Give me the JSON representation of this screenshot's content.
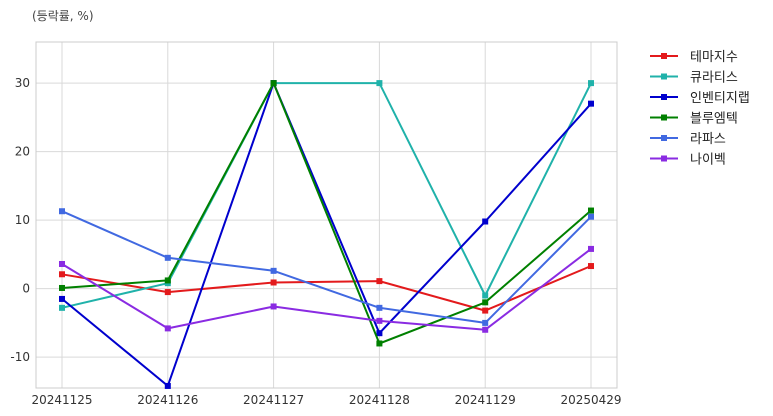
{
  "chart_data": {
    "type": "line",
    "unit_label": "(등락률, %)",
    "categories": [
      "20241125",
      "20241126",
      "20241127",
      "20241128",
      "20241129",
      "20250429"
    ],
    "ylim": [
      -14.5,
      36
    ],
    "yticks": [
      -10,
      0,
      10,
      20,
      30
    ],
    "grid": true,
    "legend_position": "right",
    "series": [
      {
        "name": "테마지수",
        "color": "#e31a1c",
        "values": [
          2.1,
          -0.5,
          0.9,
          1.1,
          -3.2,
          3.3
        ]
      },
      {
        "name": "큐라티스",
        "color": "#20b2aa",
        "values": [
          -2.8,
          0.8,
          30.0,
          30.0,
          -1.0,
          30.0
        ]
      },
      {
        "name": "인벤티지랩",
        "color": "#0000cd",
        "values": [
          -1.5,
          -14.2,
          30.0,
          -6.5,
          9.8,
          27.0
        ]
      },
      {
        "name": "블루엠텍",
        "color": "#008000",
        "values": [
          0.1,
          1.2,
          30.0,
          -8.0,
          -2.0,
          11.4
        ]
      },
      {
        "name": "라파스",
        "color": "#4169e1",
        "values": [
          11.3,
          4.5,
          2.6,
          -2.8,
          -5.0,
          10.5
        ]
      },
      {
        "name": "나이벡",
        "color": "#8a2be2",
        "values": [
          3.6,
          -5.8,
          -2.6,
          -4.7,
          -6.0,
          5.8
        ]
      }
    ]
  }
}
